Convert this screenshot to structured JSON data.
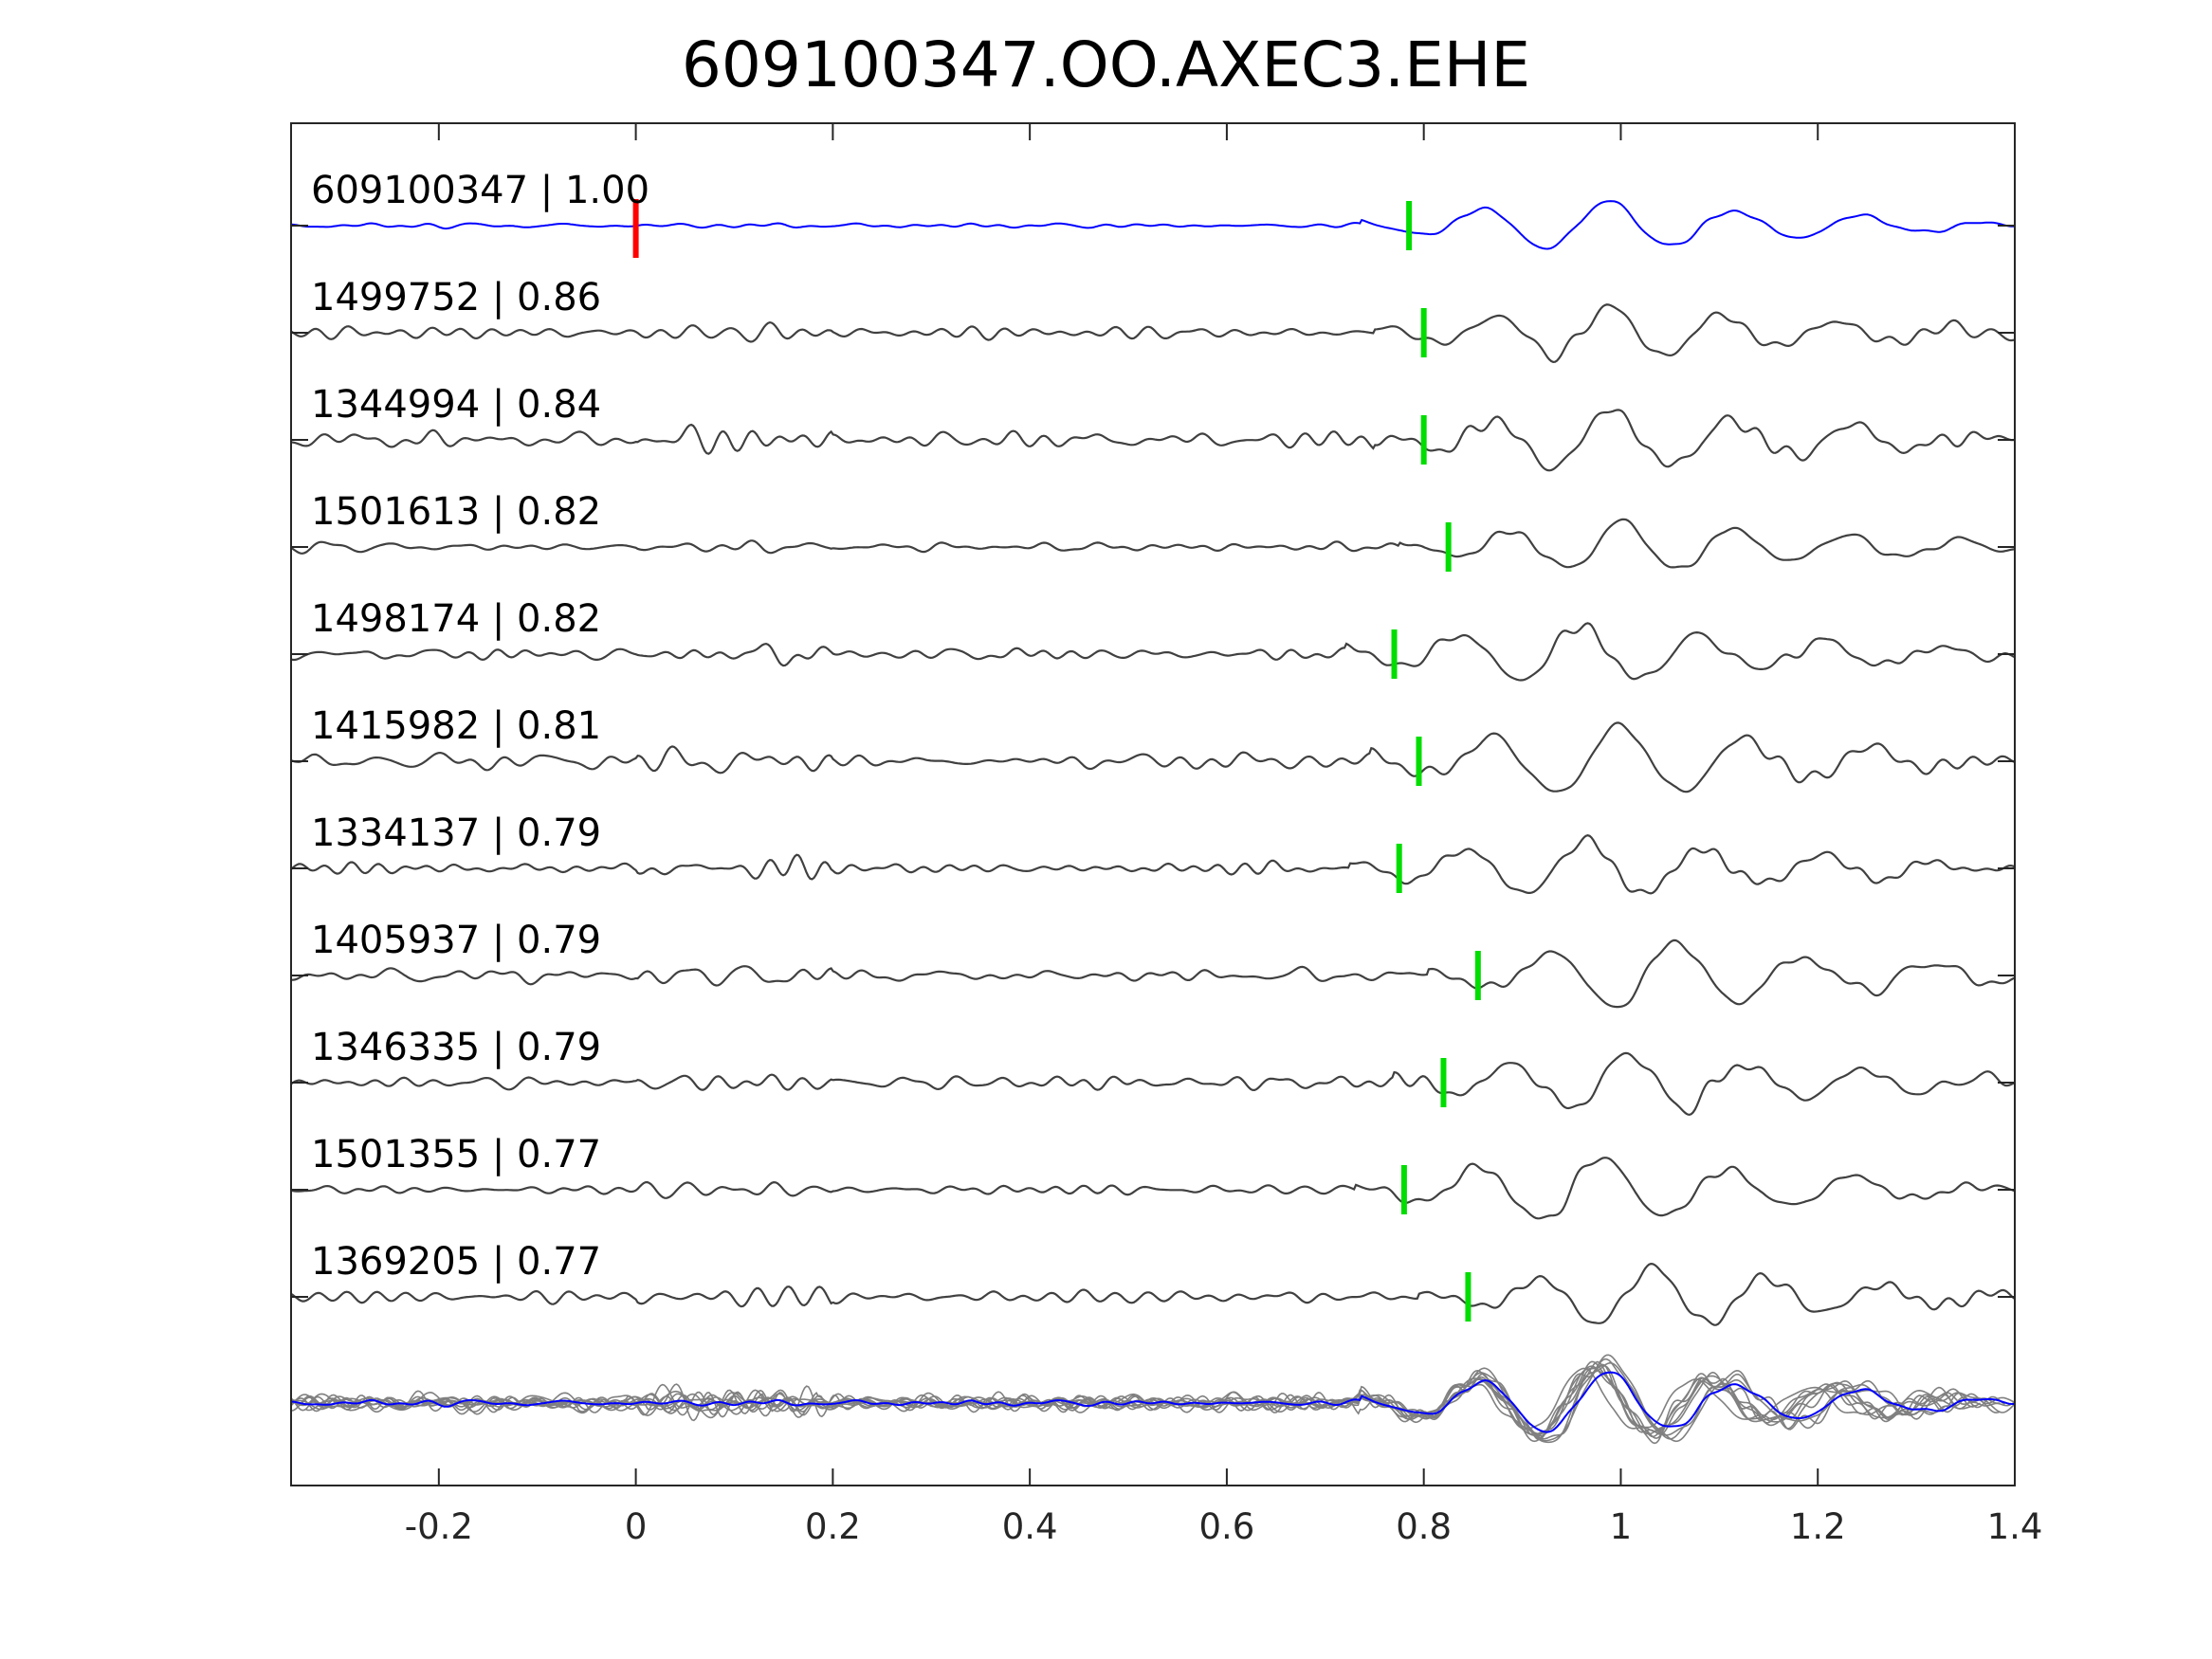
{
  "chart_data": {
    "type": "line",
    "title": "609100347.OO.AXEC3.EHE",
    "xlabel": "",
    "ylabel": "",
    "xlim": [
      -0.35,
      1.4
    ],
    "x_ticks": [
      -0.2,
      0,
      0.2,
      0.4,
      0.6,
      0.8,
      1,
      1.2,
      1.4
    ],
    "x_tick_labels": [
      "-0.2",
      "0",
      "0.2",
      "0.4",
      "0.6",
      "0.8",
      "1",
      "1.2",
      "1.4"
    ],
    "grid": false,
    "colors": {
      "template": "#0000ff",
      "neighbor": "#404040",
      "stack": "#808080",
      "origin_pick": "#ff0000",
      "arrival_pick": "#00dd00",
      "axes": "#262626"
    },
    "origin_pick": 0.0,
    "series": [
      {
        "label": "609100347 | 1.00",
        "pick": 0.785,
        "template": true
      },
      {
        "label": "1499752 | 0.86",
        "pick": 0.8
      },
      {
        "label": "1344994 | 0.84",
        "pick": 0.8
      },
      {
        "label": "1501613 | 0.82",
        "pick": 0.825
      },
      {
        "label": "1498174 | 0.82",
        "pick": 0.77
      },
      {
        "label": "1415982 | 0.81",
        "pick": 0.795
      },
      {
        "label": "1334137 | 0.79",
        "pick": 0.775
      },
      {
        "label": "1405937 | 0.79",
        "pick": 0.855
      },
      {
        "label": "1346335 | 0.79",
        "pick": 0.82
      },
      {
        "label": "1501355 | 0.77",
        "pick": 0.78
      },
      {
        "label": "1369205 | 0.77",
        "pick": 0.845
      }
    ]
  }
}
